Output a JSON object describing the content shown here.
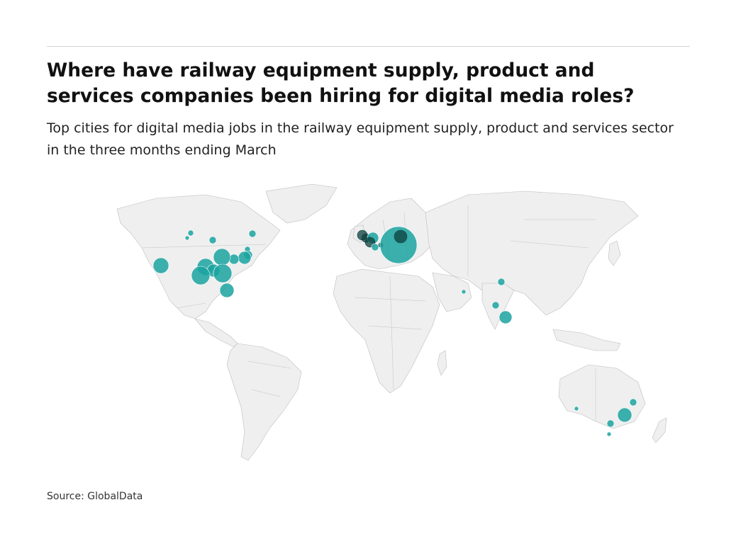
{
  "header": {
    "title": "Where have railway equipment supply, product and services companies been hiring for digital media roles?",
    "subtitle": "Top cities for digital media jobs in the railway equipment supply, product and services sector in the three months ending March"
  },
  "footer": {
    "source": "Source: GlobalData"
  },
  "map": {
    "projection": "world",
    "colors": {
      "land": "#efefef",
      "border": "#bdbdbd",
      "bubble": "#1aa3a0",
      "bubble_overlap": "#0c3f3e"
    }
  }
}
